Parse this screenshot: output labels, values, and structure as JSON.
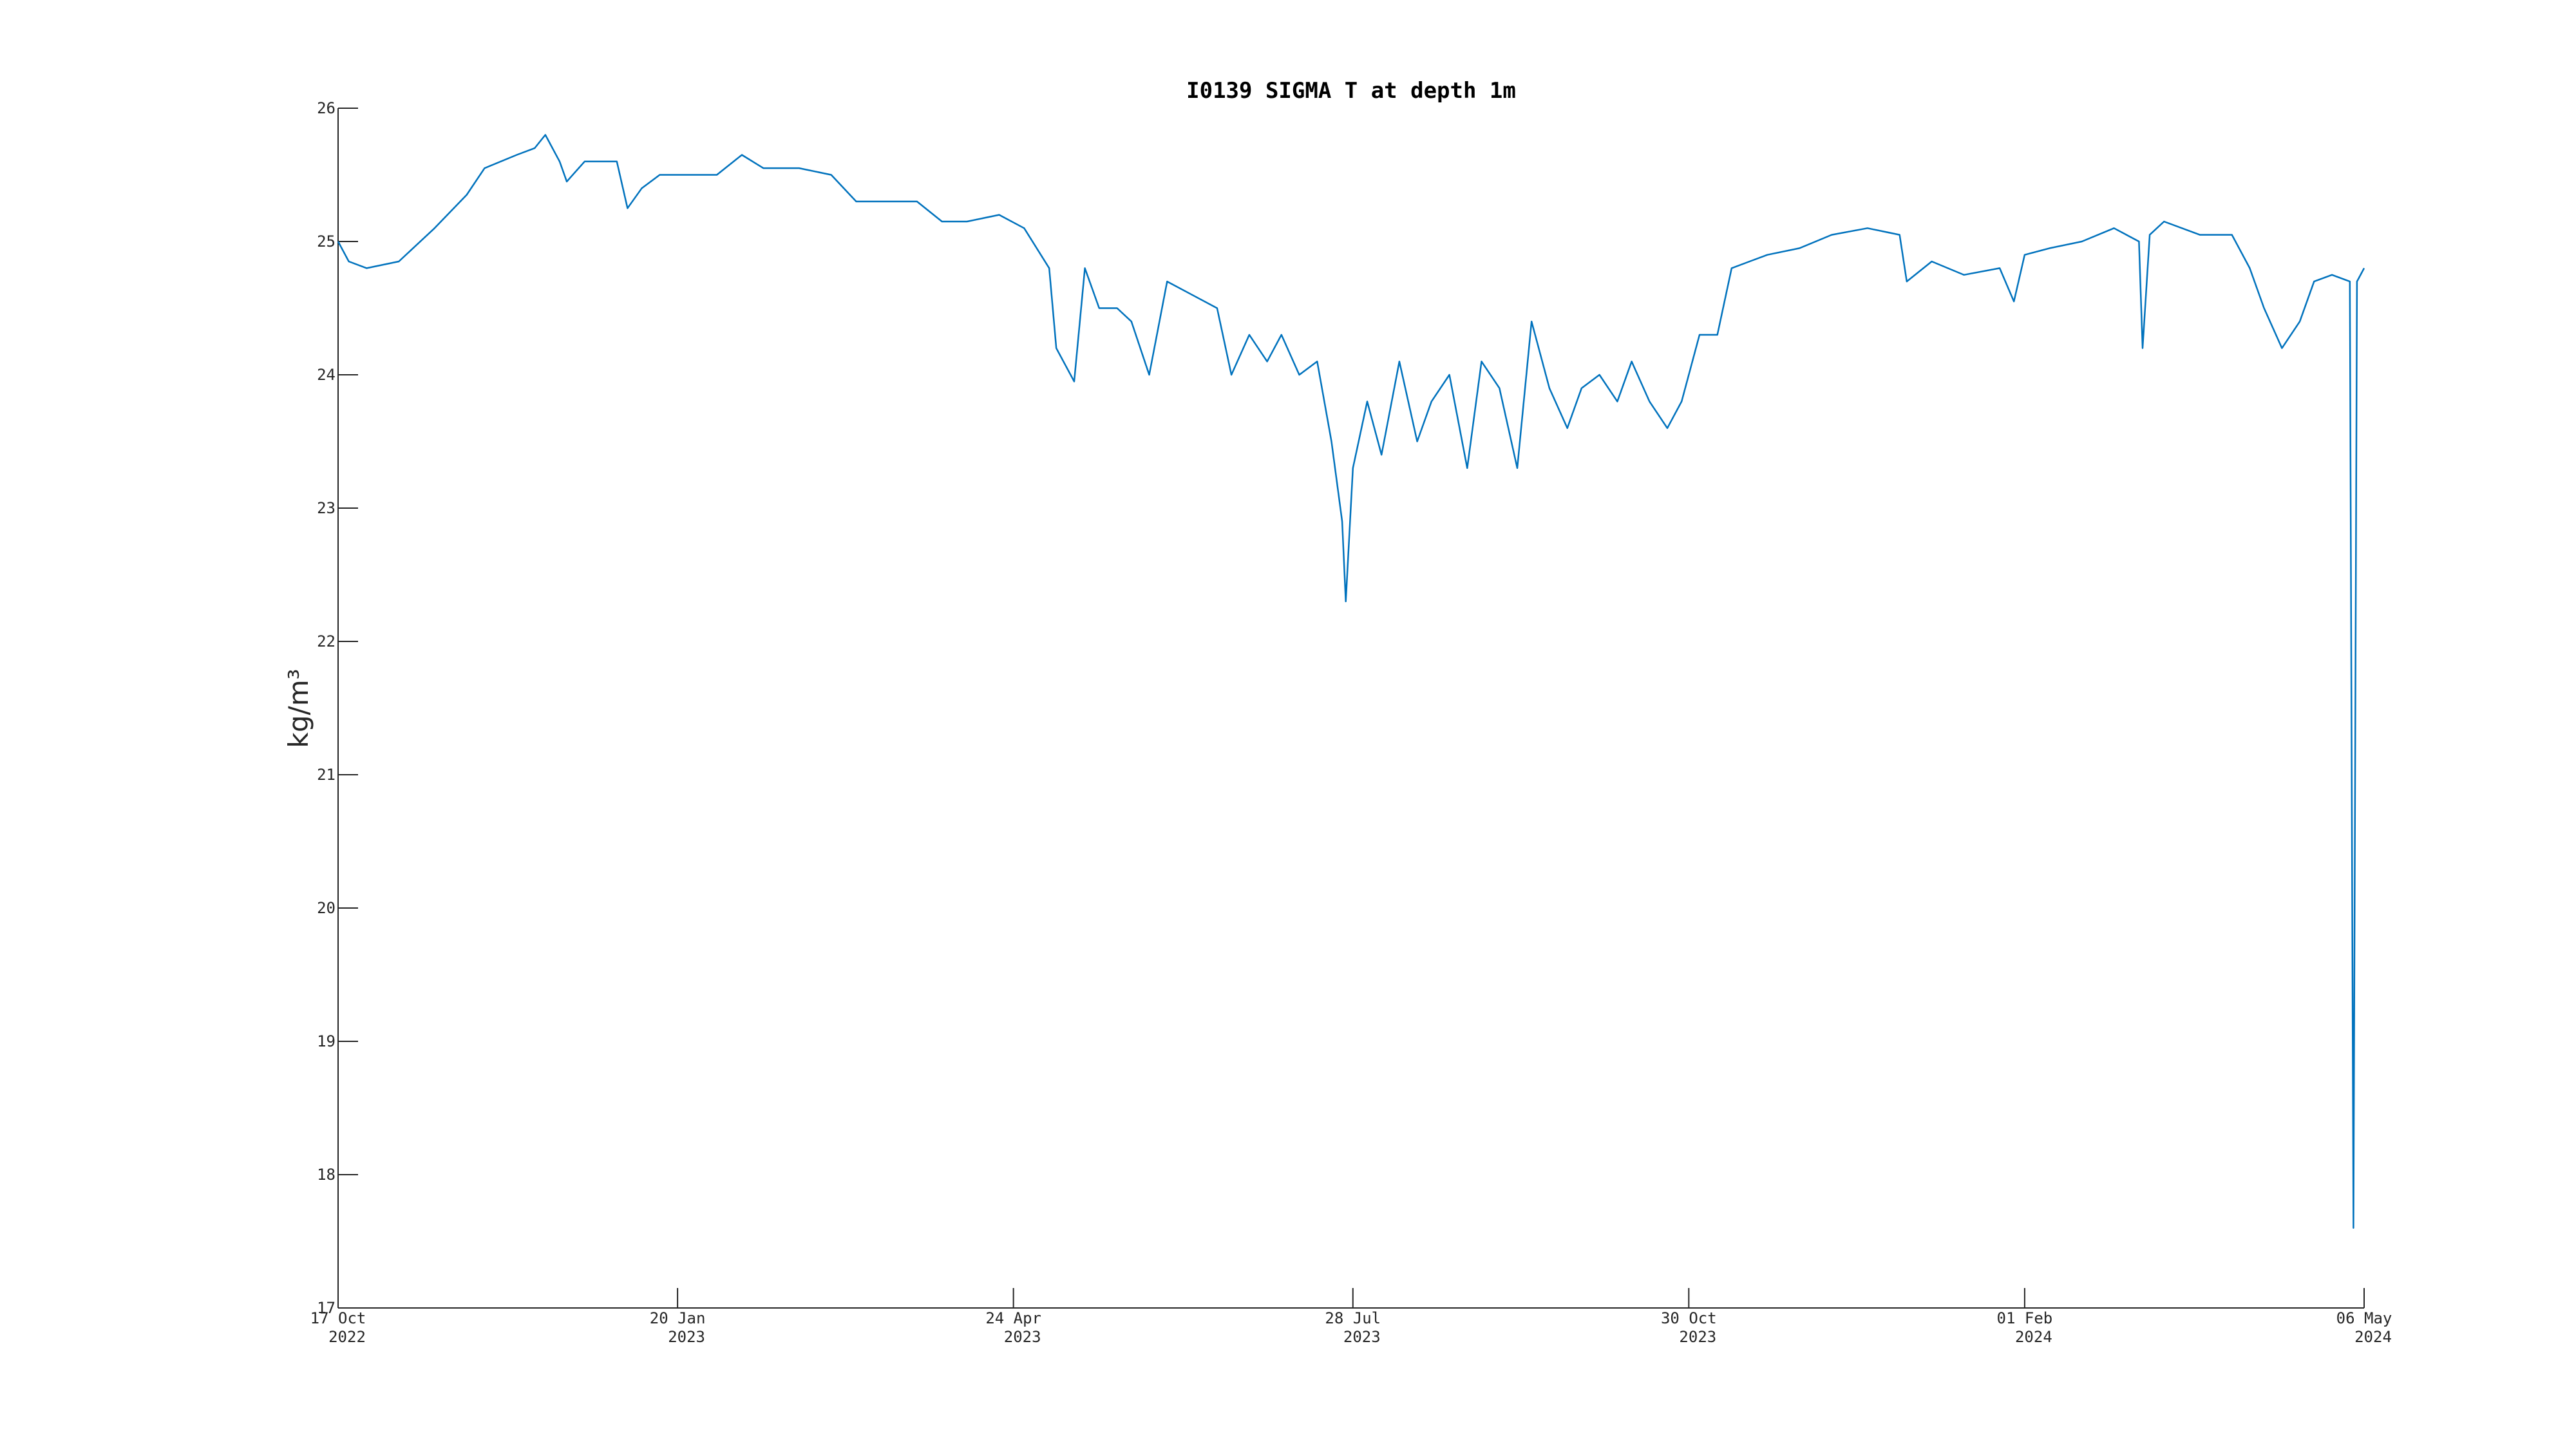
{
  "chart_data": {
    "type": "line",
    "title": "I0139 SIGMA T at depth 1m",
    "y_label": "kg/m³",
    "x": [
      "2022-10-17",
      "2022-10-20",
      "2022-10-25",
      "2022-11-03",
      "2022-11-13",
      "2022-11-22",
      "2022-11-27",
      "2022-12-06",
      "2022-12-11",
      "2022-12-14",
      "2022-12-18",
      "2022-12-20",
      "2022-12-25",
      "2023-01-03",
      "2023-01-06",
      "2023-01-10",
      "2023-01-15",
      "2023-01-22",
      "2023-01-31",
      "2023-02-07",
      "2023-02-13",
      "2023-02-23",
      "2023-03-04",
      "2023-03-11",
      "2023-03-18",
      "2023-03-28",
      "2023-04-04",
      "2023-04-11",
      "2023-04-20",
      "2023-04-27",
      "2023-05-04",
      "2023-05-06",
      "2023-05-11",
      "2023-05-14",
      "2023-05-18",
      "2023-05-23",
      "2023-05-27",
      "2023-06-01",
      "2023-06-06",
      "2023-06-13",
      "2023-06-20",
      "2023-06-24",
      "2023-06-29",
      "2023-07-04",
      "2023-07-08",
      "2023-07-13",
      "2023-07-18",
      "2023-07-22",
      "2023-07-25",
      "2023-07-26",
      "2023-07-28",
      "2023-08-01",
      "2023-08-05",
      "2023-08-10",
      "2023-08-15",
      "2023-08-19",
      "2023-08-24",
      "2023-08-29",
      "2023-09-02",
      "2023-09-07",
      "2023-09-12",
      "2023-09-16",
      "2023-09-21",
      "2023-09-26",
      "2023-09-30",
      "2023-10-05",
      "2023-10-10",
      "2023-10-14",
      "2023-10-19",
      "2023-10-24",
      "2023-10-28",
      "2023-11-02",
      "2023-11-07",
      "2023-11-11",
      "2023-11-16",
      "2023-11-21",
      "2023-11-30",
      "2023-12-09",
      "2023-12-19",
      "2023-12-28",
      "2023-12-30",
      "2024-01-06",
      "2024-01-15",
      "2024-01-25",
      "2024-01-29",
      "2024-02-01",
      "2024-02-08",
      "2024-02-17",
      "2024-02-26",
      "2024-03-04",
      "2024-03-05",
      "2024-03-07",
      "2024-03-11",
      "2024-03-21",
      "2024-03-30",
      "2024-04-04",
      "2024-04-08",
      "2024-04-13",
      "2024-04-18",
      "2024-04-22",
      "2024-04-27",
      "2024-05-02",
      "2024-05-03",
      "2024-05-04",
      "2024-05-06"
    ],
    "series": [
      {
        "name": "SIGMA T",
        "color": "#0072bd",
        "values": [
          25.0,
          24.85,
          24.8,
          24.85,
          25.1,
          25.35,
          25.55,
          25.65,
          25.7,
          25.8,
          25.6,
          25.45,
          25.6,
          25.6,
          25.25,
          25.4,
          25.5,
          25.5,
          25.5,
          25.65,
          25.55,
          25.55,
          25.5,
          25.3,
          25.3,
          25.3,
          25.15,
          25.15,
          25.2,
          25.1,
          24.8,
          24.2,
          23.95,
          24.8,
          24.5,
          24.5,
          24.4,
          24.0,
          24.7,
          24.6,
          24.5,
          24.0,
          24.3,
          24.1,
          24.3,
          24.0,
          24.1,
          23.5,
          22.9,
          22.3,
          23.3,
          23.8,
          23.4,
          24.1,
          23.5,
          23.8,
          24.0,
          23.3,
          24.1,
          23.9,
          23.3,
          24.4,
          23.9,
          23.6,
          23.9,
          24.0,
          23.8,
          24.1,
          23.8,
          23.6,
          23.8,
          24.3,
          24.3,
          24.8,
          24.85,
          24.9,
          24.95,
          25.05,
          25.1,
          25.05,
          24.7,
          24.85,
          24.75,
          24.8,
          24.55,
          24.9,
          24.95,
          25.0,
          25.1,
          25.0,
          24.2,
          25.05,
          25.15,
          25.05,
          25.05,
          24.8,
          24.5,
          24.2,
          24.4,
          24.7,
          24.75,
          24.7,
          17.6,
          24.7,
          24.8
        ]
      }
    ],
    "xlim": [
      "2022-10-17",
      "2024-05-06"
    ],
    "xticks": [
      {
        "value": "2022-10-17",
        "label": [
          "17 Oct",
          "2022"
        ]
      },
      {
        "value": "2023-01-20",
        "label": [
          "20 Jan",
          "2023"
        ]
      },
      {
        "value": "2023-04-24",
        "label": [
          "24 Apr",
          "2023"
        ]
      },
      {
        "value": "2023-07-28",
        "label": [
          "28 Jul",
          "2023"
        ]
      },
      {
        "value": "2023-10-30",
        "label": [
          "30 Oct",
          "2023"
        ]
      },
      {
        "value": "2024-02-01",
        "label": [
          "01 Feb",
          "2024"
        ]
      },
      {
        "value": "2024-05-06",
        "label": [
          "06 May",
          "2024"
        ]
      }
    ],
    "ylim": [
      17,
      26
    ],
    "yticks": [
      17,
      18,
      19,
      20,
      21,
      22,
      23,
      24,
      25,
      26
    ],
    "grid": false
  }
}
